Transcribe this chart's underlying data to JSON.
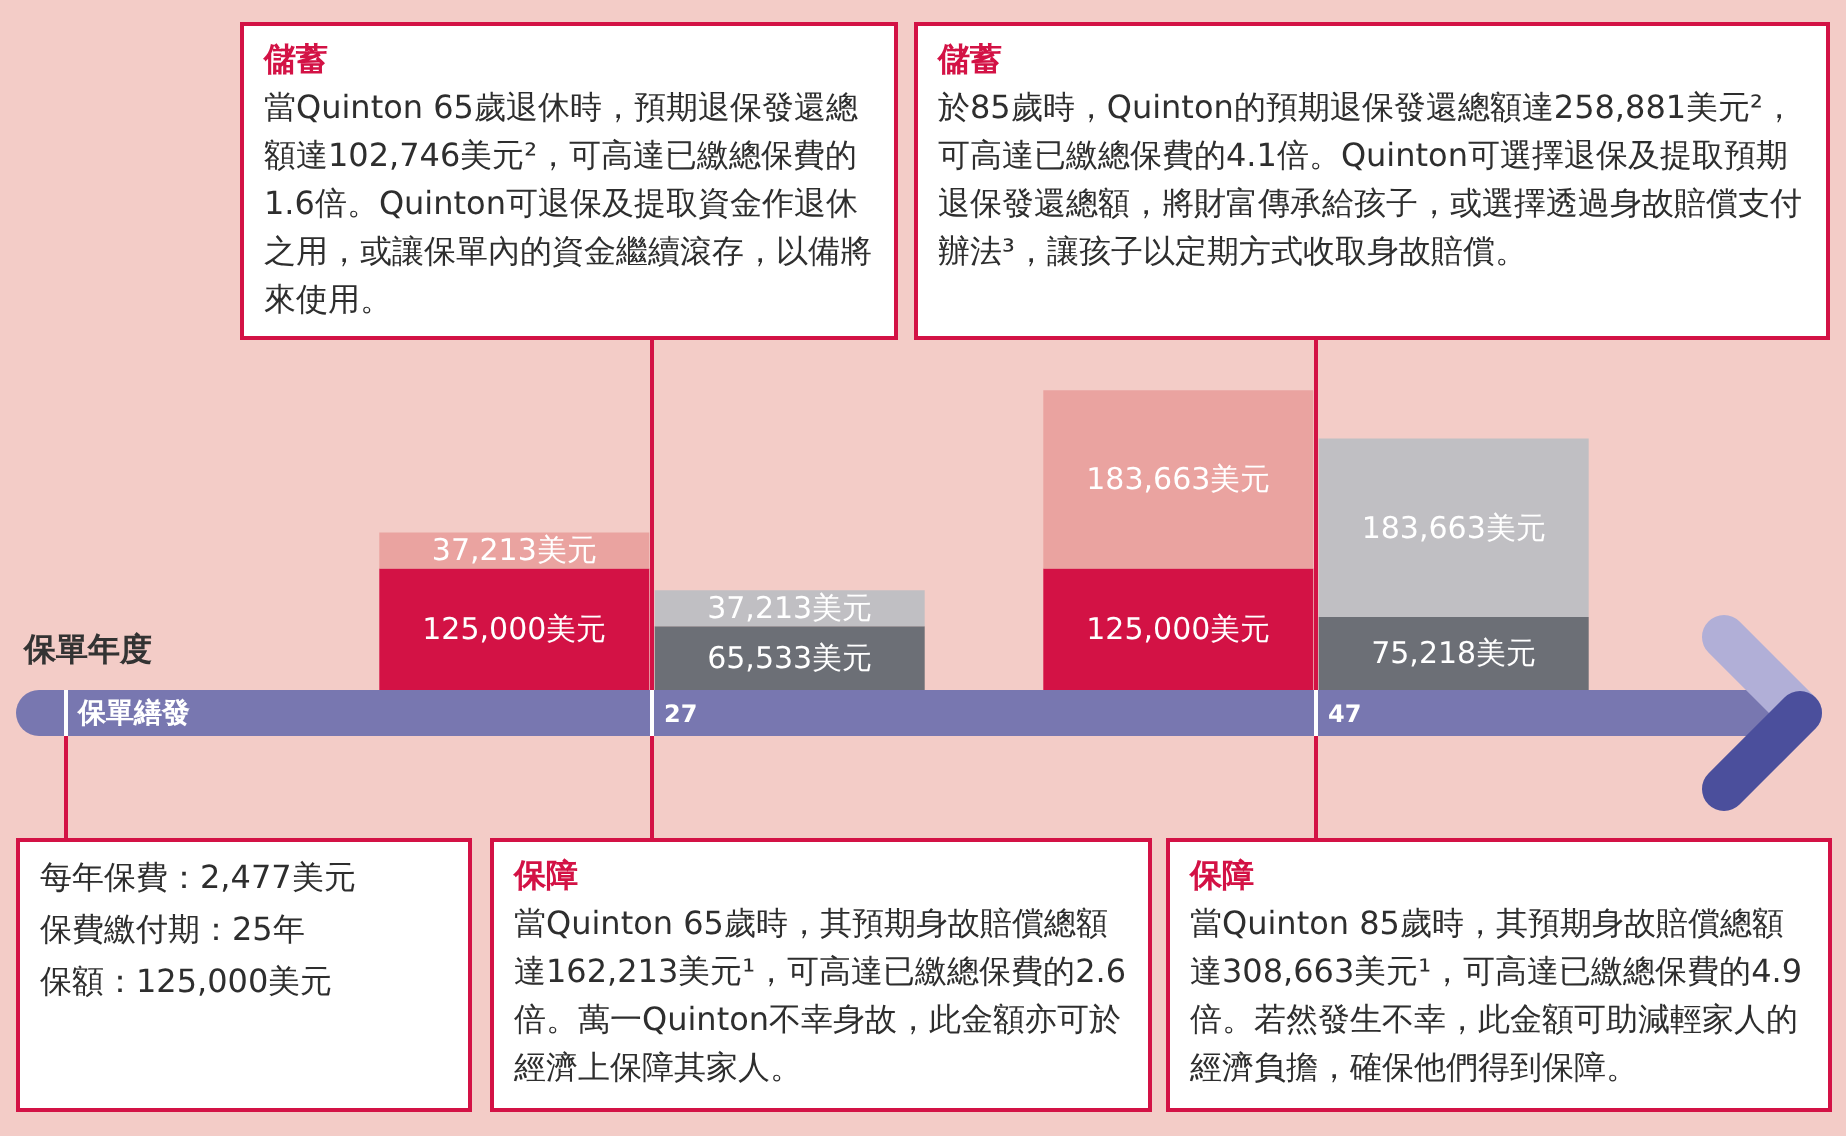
{
  "chart_data": {
    "type": "bar",
    "stacked": true,
    "tick_labels": false,
    "categories": [
      null,
      null,
      null,
      null
    ],
    "series": [
      {
        "colors": [
          "#d31245",
          "#6c6f76",
          "#d31245",
          "#6c6f76"
        ],
        "values": [
          125000,
          65533,
          125000,
          75218
        ],
        "value_labels": [
          "125,000美元",
          "65,533美元",
          "125,000美元",
          "75,218美元"
        ]
      },
      {
        "colors": [
          "#eaa3a0",
          "#c0bfc3",
          "#eaa3a0",
          "#c0bfc3"
        ],
        "values": [
          37213,
          37213,
          183663,
          183663
        ],
        "value_labels": [
          "37,213美元",
          "37,213美元",
          "183,663美元",
          "183,663美元"
        ]
      }
    ],
    "annotations": [
      "儲蓄",
      "當Quinton 65歲退休時，預期退保發還總額達102,746美元²，可高達已繳總保費的1.6倍。Quinton可退保及提取資金作退休之用，或讓保單內的資金繼續滾存，以備將來使用。",
      "儲蓄",
      "於85歲時，Quinton的預期退保發還總額達258,881美元²，可高達已繳總保費的4.1倍。Quinton可選擇退保及提取預期退保發還總額，將財富傳承給孩子，或選擇透過身故賠償支付辦法³，讓孩子以定期方式收取身故賠償。",
      "保單年度",
      "保單繕發",
      "27",
      "47",
      "每年保費：2,477美元",
      "保費繳付期：25年",
      "保額：125,000美元",
      "保障",
      "當Quinton 65歲時，其預期身故賠償總額達162,213美元¹，可高達已繳總保費的2.6倍。萬一Quinton不幸身故，此金額亦可於經濟上保障其家人。",
      "保障",
      "當Quinton 85歲時，其預期身故賠償總額達308,663美元¹，可高達已繳總保費的4.9倍。若然發生不幸，此金額可助減輕家人的經濟負擔，確保他們得到保障。"
    ]
  }
}
